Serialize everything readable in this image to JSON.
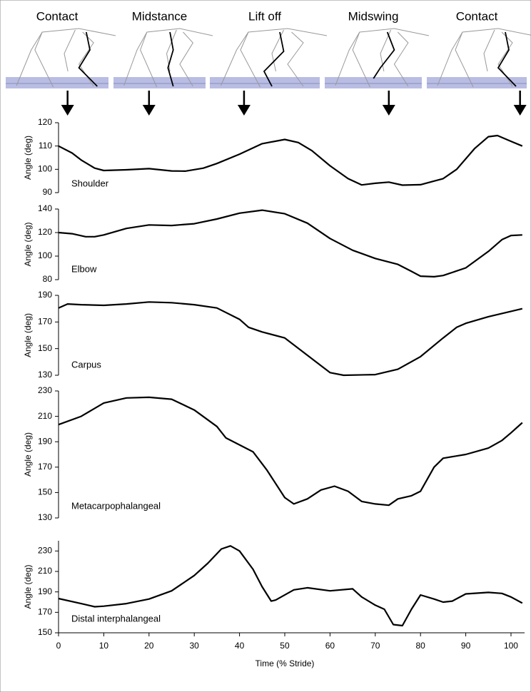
{
  "phases": [
    {
      "label": "Contact",
      "stride": 2
    },
    {
      "label": "Midstance",
      "stride": 20
    },
    {
      "label": "Lift off",
      "stride": 41
    },
    {
      "label": "Midswing",
      "stride": 73
    },
    {
      "label": "Contact",
      "stride": 102
    }
  ],
  "chart_data": [
    {
      "type": "line",
      "annotation": "Shoulder",
      "y_label": "Angle (deg)",
      "color": "#000000",
      "xlim": [
        0,
        103
      ],
      "ylim": [
        90,
        120
      ],
      "yticks": [
        90,
        100,
        110,
        120
      ],
      "x": [
        0,
        3,
        5,
        8,
        10,
        15,
        20,
        25,
        28,
        32,
        35,
        40,
        45,
        50,
        53,
        56,
        60,
        64,
        67,
        70,
        73,
        76,
        80,
        85,
        88,
        92,
        95,
        97,
        100,
        102.5
      ],
      "values": [
        110,
        107,
        104,
        100.5,
        99.5,
        99.8,
        100.3,
        99.3,
        99.2,
        100.5,
        102.5,
        106.5,
        111,
        112.8,
        111.5,
        108,
        101.5,
        96,
        93.3,
        94,
        94.5,
        93.2,
        93.4,
        96,
        100,
        109,
        114,
        114.5,
        112,
        110
      ]
    },
    {
      "type": "line",
      "annotation": "Elbow",
      "y_label": "Angle (deg)",
      "color": "#000000",
      "xlim": [
        0,
        103
      ],
      "ylim": [
        80,
        140
      ],
      "yticks": [
        80,
        100,
        120,
        140
      ],
      "x": [
        0,
        3,
        6,
        8,
        10,
        15,
        20,
        25,
        30,
        35,
        40,
        45,
        50,
        55,
        60,
        65,
        70,
        75,
        78,
        80,
        83,
        85,
        90,
        95,
        98,
        100,
        102.5
      ],
      "values": [
        120,
        119,
        116.5,
        116.5,
        118,
        123.5,
        126.5,
        126,
        127.5,
        131.5,
        136.5,
        139,
        136,
        128,
        115,
        105,
        98,
        93,
        87,
        83,
        82.5,
        83.5,
        90,
        104,
        114,
        117.5,
        118
      ]
    },
    {
      "type": "line",
      "annotation": "Carpus",
      "y_label": "Angle (deg)",
      "color": "#000000",
      "xlim": [
        0,
        103
      ],
      "ylim": [
        130,
        190
      ],
      "yticks": [
        130,
        150,
        170,
        190
      ],
      "x": [
        0,
        2,
        5,
        10,
        15,
        20,
        25,
        30,
        35,
        40,
        42,
        45,
        50,
        55,
        60,
        63,
        70,
        75,
        80,
        85,
        88,
        90,
        95,
        100,
        102.5
      ],
      "values": [
        180.5,
        183.5,
        183,
        182.5,
        183.5,
        185,
        184.5,
        183,
        180.5,
        172,
        166,
        162.5,
        158,
        145,
        132,
        130,
        130.5,
        134.5,
        144,
        158,
        166,
        169,
        174,
        178,
        180
      ]
    },
    {
      "type": "line",
      "annotation": "Metacarpophalangeal",
      "y_label": "Angle (deg)",
      "color": "#000000",
      "xlim": [
        0,
        103
      ],
      "ylim": [
        130,
        230
      ],
      "yticks": [
        130,
        150,
        170,
        190,
        210,
        230
      ],
      "x": [
        0,
        5,
        10,
        15,
        20,
        25,
        30,
        35,
        37,
        40,
        43,
        46,
        50,
        52,
        55,
        58,
        61,
        64,
        67,
        70,
        73,
        75,
        78,
        80,
        83,
        85,
        90,
        95,
        98,
        100,
        102.5
      ],
      "values": [
        203.5,
        210,
        220.5,
        224.5,
        225,
        223.5,
        215,
        202,
        193,
        187.5,
        182,
        168,
        146,
        141,
        145,
        152,
        155,
        151,
        143,
        141,
        140,
        145,
        147.5,
        151,
        170,
        177,
        180,
        185,
        191,
        197,
        205
      ]
    },
    {
      "type": "line",
      "annotation": "Distal interphalangeal",
      "y_label": "Angle (deg)",
      "x_label": "Time (% Stride)",
      "color": "#000000",
      "xlim": [
        0,
        103
      ],
      "ylim": [
        150,
        240
      ],
      "yticks": [
        150,
        170,
        190,
        210,
        230
      ],
      "xticks": [
        0,
        10,
        20,
        30,
        40,
        50,
        60,
        70,
        80,
        90,
        100
      ],
      "x": [
        0,
        5,
        8,
        10,
        15,
        20,
        25,
        30,
        33,
        36,
        38,
        40,
        43,
        45,
        47,
        48,
        52,
        55,
        60,
        65,
        67,
        70,
        72,
        74,
        76,
        78,
        80,
        83,
        85,
        87,
        90,
        95,
        98,
        100,
        102.5
      ],
      "values": [
        183.5,
        178.5,
        175.5,
        176,
        178.5,
        183,
        191,
        206,
        218,
        232,
        235,
        230,
        212,
        195,
        181,
        182,
        192,
        194,
        191,
        193,
        185,
        177,
        173,
        158,
        157,
        173,
        187,
        183,
        180,
        181,
        188,
        189.5,
        188.5,
        185,
        179
      ]
    }
  ]
}
